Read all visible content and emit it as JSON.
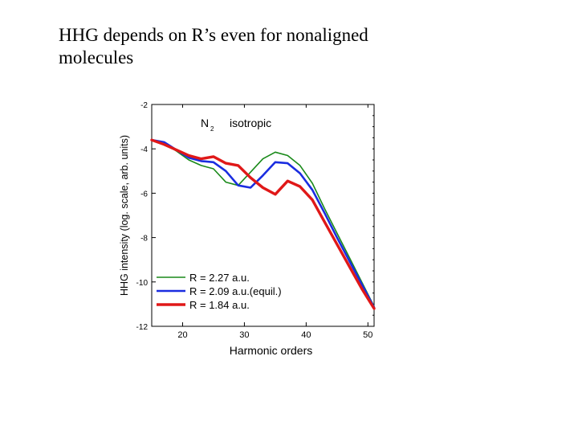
{
  "slide": {
    "title": "HHG depends on R’s even for nonaligned molecules"
  },
  "chart_data": {
    "type": "line",
    "xlabel": "Harmonic orders",
    "ylabel": "HHG intensity (log. scale, arb. units)",
    "xlim": [
      15,
      51
    ],
    "ylim": [
      -12,
      -2
    ],
    "xticks": [
      20,
      30,
      40,
      50
    ],
    "yticks": [
      -2,
      -4,
      -6,
      -8,
      -10,
      -12
    ],
    "annotation": {
      "molecule": "N",
      "subscript": "2",
      "label": "isotropic"
    },
    "legend_position": "bottom-left",
    "series": [
      {
        "name": "R = 2.27 a.u.",
        "color": "#1a8a1a",
        "width": 1.6,
        "x": [
          15,
          17,
          19,
          21,
          23,
          25,
          27,
          29,
          31,
          33,
          35,
          37,
          39,
          41,
          43,
          45,
          47,
          49,
          51
        ],
        "y": [
          -3.6,
          -3.75,
          -4.1,
          -4.5,
          -4.75,
          -4.9,
          -5.5,
          -5.65,
          -5.05,
          -4.45,
          -4.15,
          -4.3,
          -4.75,
          -5.55,
          -6.7,
          -7.8,
          -8.9,
          -10.0,
          -11.1
        ]
      },
      {
        "name": "R = 2.09 a.u.(equil.)",
        "color": "#1a2de0",
        "width": 2.6,
        "x": [
          15,
          17,
          19,
          21,
          23,
          25,
          27,
          29,
          31,
          33,
          35,
          37,
          39,
          41,
          43,
          45,
          47,
          49,
          51
        ],
        "y": [
          -3.6,
          -3.7,
          -4.05,
          -4.4,
          -4.55,
          -4.6,
          -5.0,
          -5.65,
          -5.75,
          -5.2,
          -4.6,
          -4.65,
          -5.1,
          -5.85,
          -6.9,
          -8.0,
          -9.05,
          -10.1,
          -11.15
        ]
      },
      {
        "name": "R = 1.84 a.u.",
        "color": "#e01818",
        "width": 3.4,
        "x": [
          15,
          17,
          19,
          21,
          23,
          25,
          27,
          29,
          31,
          33,
          35,
          37,
          39,
          41,
          43,
          45,
          47,
          49,
          51
        ],
        "y": [
          -3.6,
          -3.8,
          -4.05,
          -4.3,
          -4.45,
          -4.35,
          -4.65,
          -4.75,
          -5.3,
          -5.75,
          -6.05,
          -5.45,
          -5.7,
          -6.3,
          -7.3,
          -8.3,
          -9.3,
          -10.3,
          -11.2
        ]
      }
    ]
  }
}
